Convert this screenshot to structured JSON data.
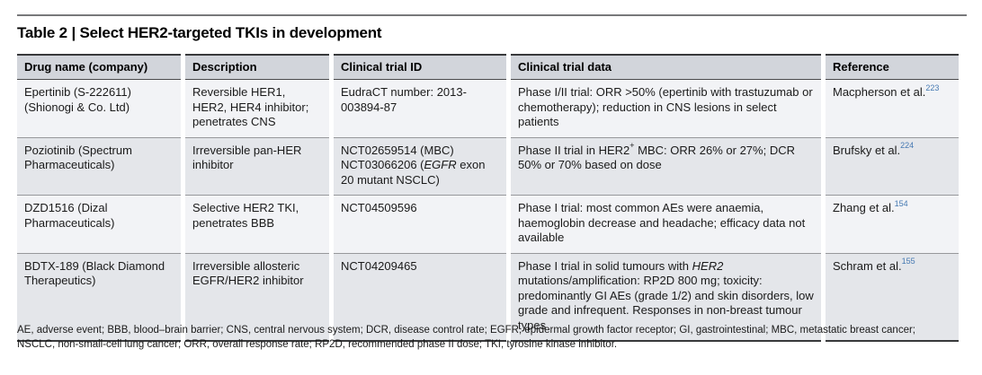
{
  "page": {
    "title": "Table 2 | Select HER2-targeted TKIs in development"
  },
  "colors": {
    "reference_link_blue": "#4579b2",
    "header_bg": "#d2d5db",
    "row_light_bg": "#f2f3f6",
    "row_shaded_bg": "#e4e6ea"
  },
  "table": {
    "columns": [
      {
        "label": "Drug name (company)"
      },
      {
        "label": "Description"
      },
      {
        "label": "Clinical trial ID"
      },
      {
        "label": "Clinical trial data"
      },
      {
        "label": "Reference"
      }
    ],
    "rows": [
      {
        "drug": "Epertinib (S-222611) (Shionogi & Co. Ltd)",
        "description": "Reversible HER1, HER2, HER4 inhibitor; penetrates CNS",
        "trial_id": "EudraCT number: 2013-003894-87",
        "trial_data": "Phase I/II trial: ORR >50% (epertinib with trastuzumab or chemotherapy); reduction in CNS lesions in select patients",
        "reference": "Macpherson et al.",
        "reference_citation": "223"
      },
      {
        "drug": "Poziotinib (Spectrum Pharmaceuticals)",
        "description": "Irreversible pan-HER inhibitor",
        "trial_id_line1": "NCT02659514 (MBC)",
        "trial_id_line2_start": "NCT03066206 (",
        "trial_id_gene_italic": "EGFR",
        "trial_id_line2_end": " exon 20 mutant NSCLC)",
        "trial_data_start": "Phase II trial in HER2",
        "trial_data_sup_plus": "+",
        "trial_data_end": " MBC: ORR 26% or 27%; DCR 50% or 70% based on dose",
        "reference": "Brufsky et al.",
        "reference_citation": "224"
      },
      {
        "drug": "DZD1516 (Dizal Pharmaceuticals)",
        "description": "Selective HER2 TKI, penetrates BBB",
        "trial_id": "NCT04509596",
        "trial_data": "Phase I trial: most common AEs were anaemia, haemoglobin decrease and headache; efficacy data not available",
        "reference": "Zhang et al.",
        "reference_citation": "154"
      },
      {
        "drug": "BDTX-189 (Black Diamond Therapeutics)",
        "description": "Irreversible allosteric EGFR/HER2 inhibitor",
        "trial_id": "NCT04209465",
        "trial_data_start": "Phase I trial in solid tumours with ",
        "trial_data_gene_italic": "HER2",
        "trial_data_end": " mutations/amplification: RP2D 800 mg; toxicity: predominantly GI AEs (grade 1/2) and skin disorders, low grade and infrequent. Responses in non-breast tumour types",
        "reference": "Schram et al.",
        "reference_citation": "155"
      }
    ],
    "footnote": "AE, adverse event; BBB, blood–brain barrier; CNS, central nervous system; DCR, disease control rate; EGFR, epidermal growth factor receptor; GI, gastrointestinal; MBC, metastatic breast cancer; NSCLC, non-small-cell lung cancer; ORR, overall response rate; RP2D, recommended phase II dose; TKI, tyrosine kinase inhibitor."
  }
}
